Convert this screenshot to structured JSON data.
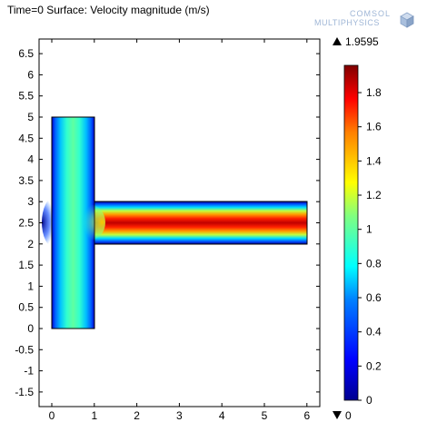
{
  "header": {
    "title": "Time=0  Surface: Velocity magnitude (m/s)"
  },
  "logo": {
    "line1": "COMSOL",
    "line2": "MULTIPHYSICS",
    "icon": "comsol-cube-icon",
    "color": "#9fb6d6"
  },
  "plot": {
    "x_ticks": [
      "0",
      "1",
      "2",
      "3",
      "4",
      "5",
      "6"
    ],
    "y_ticks": [
      "6.5",
      "6",
      "5.5",
      "5",
      "4.5",
      "4",
      "3.5",
      "3",
      "2.5",
      "2",
      "1.5",
      "1",
      "0.5",
      "0",
      "-0.5",
      "-1",
      "-1.5"
    ],
    "xlim": [
      -0.3,
      6.3
    ],
    "ylim": [
      -1.85,
      6.85
    ]
  },
  "colorbar": {
    "max_label": "1.9595",
    "min_label": "0",
    "max_icon": "triangle-up-icon",
    "min_icon": "triangle-down-icon",
    "ticks": [
      "1.8",
      "1.6",
      "1.4",
      "1.2",
      "1",
      "0.8",
      "0.6",
      "0.4",
      "0.2",
      "0"
    ],
    "tick_values": [
      1.8,
      1.6,
      1.4,
      1.2,
      1.0,
      0.8,
      0.6,
      0.4,
      0.2,
      0
    ],
    "range": [
      0,
      1.9595
    ],
    "colormap": "rainbow"
  }
}
